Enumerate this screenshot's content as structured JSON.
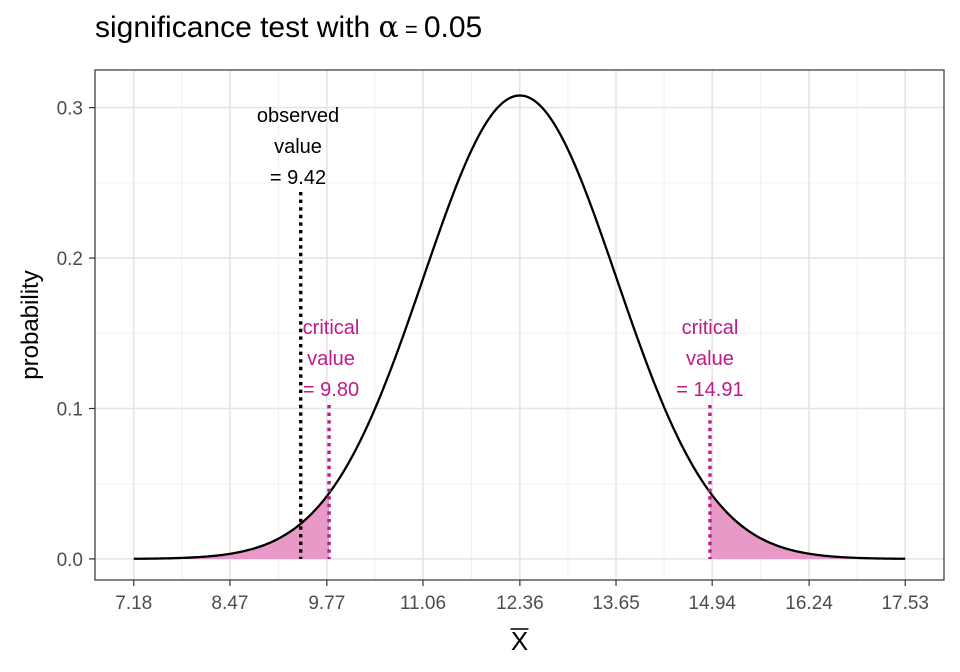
{
  "chart_data": {
    "type": "line",
    "title": "significance test with α = 0.05",
    "xlabel": "X̄",
    "ylabel": "probability",
    "xlim": [
      6.66,
      18.05
    ],
    "ylim": [
      -0.014,
      0.325
    ],
    "x_ticks": [
      7.18,
      8.47,
      9.77,
      11.06,
      12.36,
      13.65,
      14.94,
      16.24,
      17.53
    ],
    "x_tick_labels": [
      "7.18",
      "8.47",
      "9.77",
      "11.06",
      "12.36",
      "13.65",
      "14.94",
      "16.24",
      "17.53"
    ],
    "y_ticks": [
      0.0,
      0.1,
      0.2,
      0.3
    ],
    "y_tick_labels": [
      "0.0",
      "0.1",
      "0.2",
      "0.3"
    ],
    "grid": true,
    "distribution": {
      "mean": 12.36,
      "sd": 1.295,
      "x_range": [
        7.18,
        17.53
      ]
    },
    "series": [
      {
        "x": [
          7.18,
          7.7,
          8.21,
          8.73,
          9.25,
          9.77,
          10.29,
          10.8,
          11.32,
          11.84,
          12.36,
          12.88,
          13.39,
          13.91,
          14.43,
          14.94,
          15.46,
          15.98,
          16.5,
          17.01,
          17.53
        ],
        "values": [
          0.0001,
          0.0005,
          0.0018,
          0.006,
          0.0172,
          0.0415,
          0.0858,
          0.1508,
          0.2258,
          0.2847,
          0.308,
          0.2847,
          0.2258,
          0.1508,
          0.0858,
          0.0415,
          0.0172,
          0.006,
          0.0018,
          0.0005,
          0.0001
        ]
      }
    ],
    "shaded_regions": [
      {
        "from": 7.18,
        "to": 9.8,
        "color": "#e899c8"
      },
      {
        "from": 14.91,
        "to": 17.53,
        "color": "#e899c8"
      }
    ],
    "annotations": [
      {
        "x": 9.42,
        "lines": [
          "observed",
          "value",
          "= 9.42"
        ],
        "color": "#000000",
        "style": "dotted"
      },
      {
        "x": 9.8,
        "lines": [
          "critical",
          "value",
          "= 9.80"
        ],
        "color": "#c0198a",
        "style": "dotted"
      },
      {
        "x": 14.91,
        "lines": [
          "critical",
          "value",
          "= 14.91"
        ],
        "color": "#c0198a",
        "style": "dotted"
      }
    ]
  }
}
